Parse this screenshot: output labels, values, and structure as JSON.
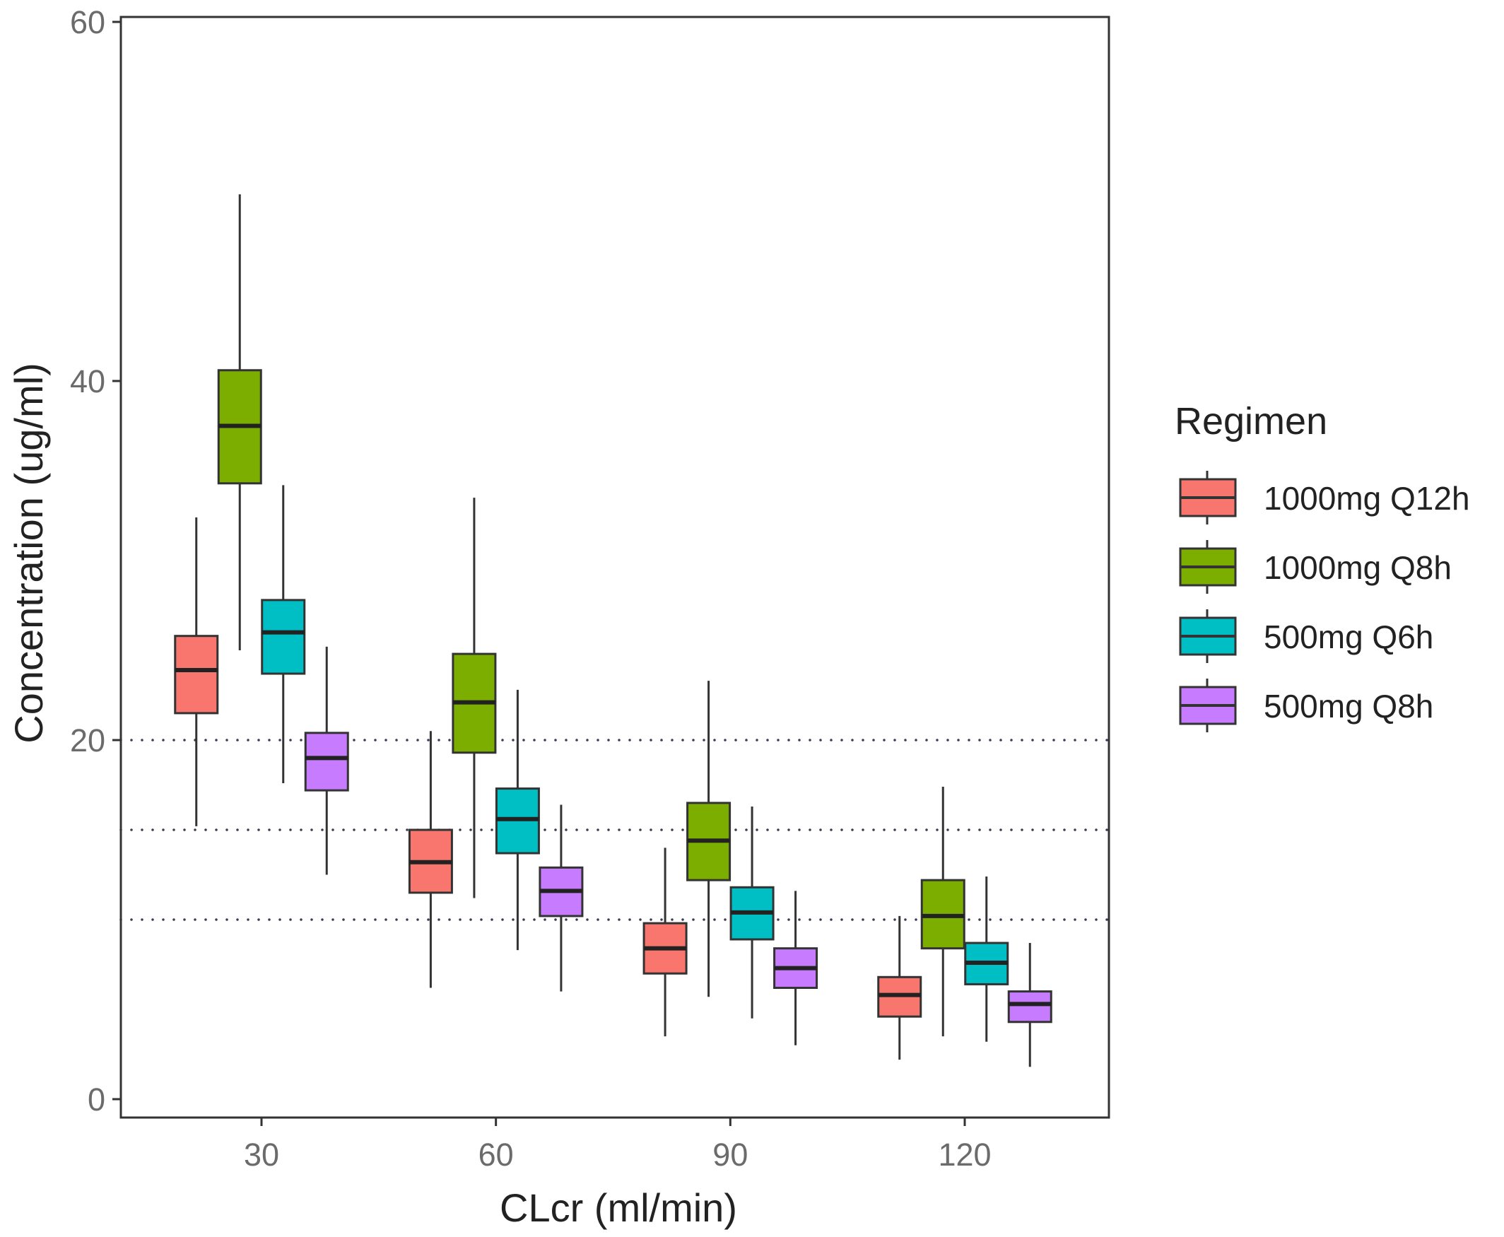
{
  "chart_data": {
    "type": "boxplot",
    "title": "",
    "xlabel": "CLcr (ml/min)",
    "ylabel": "Concentration (ug/ml)",
    "xlim": [
      12,
      138.5
    ],
    "ylim": [
      0,
      60
    ],
    "xticks": [
      30,
      60,
      90,
      120
    ],
    "xtick_labels": [
      "30",
      "60",
      "90",
      "120"
    ],
    "yticks": [
      0,
      20,
      40,
      60
    ],
    "ytick_labels": [
      "0",
      "20",
      "40",
      "60"
    ],
    "grid": false,
    "reference_lines": [
      {
        "y": 20,
        "style": "dotted"
      },
      {
        "y": 15,
        "style": "dotted"
      },
      {
        "y": 10,
        "style": "dotted"
      }
    ],
    "legend": {
      "title": "Regimen",
      "position": "right",
      "entries": [
        {
          "label": "1000mg Q12h",
          "color": "#F8766D"
        },
        {
          "label": "1000mg Q8h",
          "color": "#7CAE00"
        },
        {
          "label": "500mg Q6h",
          "color": "#00BFC4"
        },
        {
          "label": "500mg Q8h",
          "color": "#C77CFF"
        }
      ]
    },
    "categories": [
      30,
      60,
      90,
      120
    ],
    "series": [
      {
        "name": "1000mg Q12h",
        "color": "#F8766D",
        "boxes": [
          {
            "x": 30,
            "whisker_low": 15.2,
            "q1": 21.5,
            "median": 23.9,
            "q3": 25.8,
            "whisker_high": 32.4
          },
          {
            "x": 60,
            "whisker_low": 6.2,
            "q1": 11.5,
            "median": 13.2,
            "q3": 15.0,
            "whisker_high": 20.5
          },
          {
            "x": 90,
            "whisker_low": 3.5,
            "q1": 7.0,
            "median": 8.4,
            "q3": 9.8,
            "whisker_high": 14.0
          },
          {
            "x": 120,
            "whisker_low": 2.2,
            "q1": 4.6,
            "median": 5.8,
            "q3": 6.8,
            "whisker_high": 10.2
          }
        ]
      },
      {
        "name": "1000mg Q8h",
        "color": "#7CAE00",
        "boxes": [
          {
            "x": 30,
            "whisker_low": 25.0,
            "q1": 34.3,
            "median": 37.5,
            "q3": 40.6,
            "whisker_high": 50.4
          },
          {
            "x": 60,
            "whisker_low": 11.2,
            "q1": 19.3,
            "median": 22.1,
            "q3": 24.8,
            "whisker_high": 33.5
          },
          {
            "x": 90,
            "whisker_low": 5.7,
            "q1": 12.2,
            "median": 14.4,
            "q3": 16.5,
            "whisker_high": 23.3
          },
          {
            "x": 120,
            "whisker_low": 3.5,
            "q1": 8.4,
            "median": 10.2,
            "q3": 12.2,
            "whisker_high": 17.4
          }
        ]
      },
      {
        "name": "500mg Q6h",
        "color": "#00BFC4",
        "boxes": [
          {
            "x": 30,
            "whisker_low": 17.6,
            "q1": 23.7,
            "median": 26.0,
            "q3": 27.8,
            "whisker_high": 34.2
          },
          {
            "x": 60,
            "whisker_low": 8.3,
            "q1": 13.7,
            "median": 15.6,
            "q3": 17.3,
            "whisker_high": 22.8
          },
          {
            "x": 90,
            "whisker_low": 4.5,
            "q1": 8.9,
            "median": 10.4,
            "q3": 11.8,
            "whisker_high": 16.3
          },
          {
            "x": 120,
            "whisker_low": 3.2,
            "q1": 6.4,
            "median": 7.6,
            "q3": 8.7,
            "whisker_high": 12.4
          }
        ]
      },
      {
        "name": "500mg Q8h",
        "color": "#C77CFF",
        "boxes": [
          {
            "x": 30,
            "whisker_low": 12.5,
            "q1": 17.2,
            "median": 19.0,
            "q3": 20.4,
            "whisker_high": 25.2
          },
          {
            "x": 60,
            "whisker_low": 6.0,
            "q1": 10.2,
            "median": 11.6,
            "q3": 12.9,
            "whisker_high": 16.4
          },
          {
            "x": 90,
            "whisker_low": 3.0,
            "q1": 6.2,
            "median": 7.3,
            "q3": 8.4,
            "whisker_high": 11.6
          },
          {
            "x": 120,
            "whisker_low": 1.8,
            "q1": 4.3,
            "median": 5.3,
            "q3": 6.0,
            "whisker_high": 8.7
          }
        ]
      }
    ]
  }
}
